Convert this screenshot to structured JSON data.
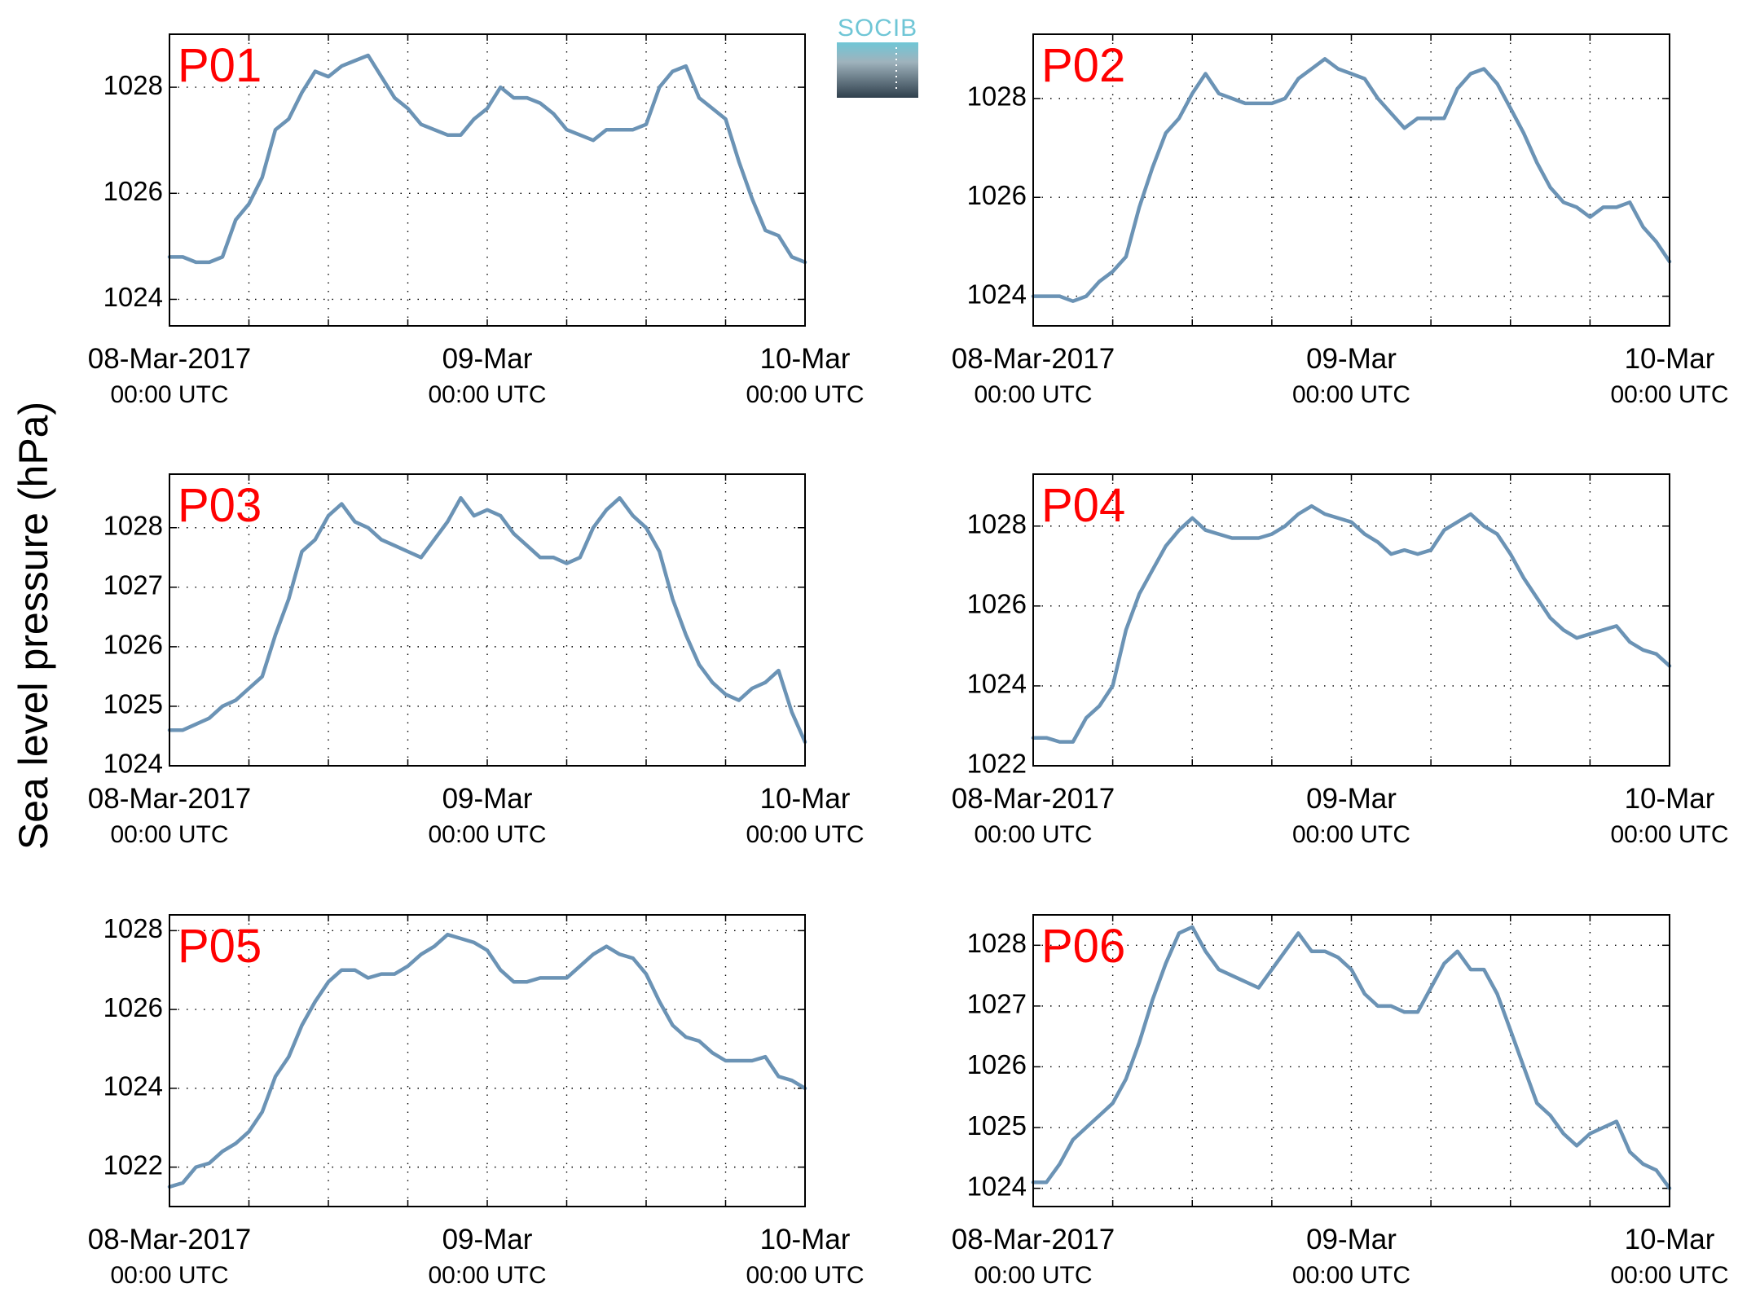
{
  "figure": {
    "ylabel": "Sea level pressure (hPa)",
    "logo_text": "SOCIB",
    "colors": {
      "line": "#6b93b5",
      "title": "#ff0000",
      "logo_top": "#6fc6d6",
      "logo_bottom": "#2f3f4c"
    }
  },
  "chart_data": [
    {
      "type": "line",
      "title": "P01",
      "xlim": [
        0,
        48
      ],
      "ylim": [
        1023.5,
        1029.0
      ],
      "yticks": [
        1024,
        1026,
        1028
      ],
      "xticks": [
        0,
        24,
        48
      ],
      "xticklabels": [
        "08-Mar-2017",
        "09-Mar",
        "10-Mar"
      ],
      "xticksub": [
        "00:00 UTC",
        "00:00 UTC",
        "00:00 UTC"
      ],
      "grid": true,
      "series": [
        {
          "x": [
            0,
            1,
            2,
            3,
            4,
            5,
            6,
            7,
            8,
            9,
            10,
            11,
            12,
            13,
            14,
            15,
            16,
            17,
            18,
            19,
            20,
            21,
            22,
            23,
            24,
            25,
            26,
            27,
            28,
            29,
            30,
            31,
            32,
            33,
            34,
            35,
            36,
            37,
            38,
            39,
            40,
            41,
            42,
            43,
            44,
            45,
            46,
            47,
            48
          ],
          "values": [
            1024.8,
            1024.8,
            1024.7,
            1024.7,
            1024.8,
            1025.5,
            1025.8,
            1026.3,
            1027.2,
            1027.4,
            1027.9,
            1028.3,
            1028.2,
            1028.4,
            1028.5,
            1028.6,
            1028.2,
            1027.8,
            1027.6,
            1027.3,
            1027.2,
            1027.1,
            1027.1,
            1027.4,
            1027.6,
            1028.0,
            1027.8,
            1027.8,
            1027.7,
            1027.5,
            1027.2,
            1027.1,
            1027.0,
            1027.2,
            1027.2,
            1027.2,
            1027.3,
            1028.0,
            1028.3,
            1028.4,
            1027.8,
            1027.6,
            1027.4,
            1026.6,
            1025.9,
            1025.3,
            1025.2,
            1024.8,
            1024.7
          ]
        }
      ]
    },
    {
      "type": "line",
      "title": "P02",
      "xlim": [
        0,
        48
      ],
      "ylim": [
        1023.4,
        1029.3
      ],
      "yticks": [
        1024,
        1026,
        1028
      ],
      "xticks": [
        0,
        24,
        48
      ],
      "xticklabels": [
        "08-Mar-2017",
        "09-Mar",
        "10-Mar"
      ],
      "xticksub": [
        "00:00 UTC",
        "00:00 UTC",
        "00:00 UTC"
      ],
      "grid": true,
      "series": [
        {
          "x": [
            0,
            1,
            2,
            3,
            4,
            5,
            6,
            7,
            8,
            9,
            10,
            11,
            12,
            13,
            14,
            15,
            16,
            17,
            18,
            19,
            20,
            21,
            22,
            23,
            24,
            25,
            26,
            27,
            28,
            29,
            30,
            31,
            32,
            33,
            34,
            35,
            36,
            37,
            38,
            39,
            40,
            41,
            42,
            43,
            44,
            45,
            46,
            47,
            48
          ],
          "values": [
            1024.0,
            1024.0,
            1024.0,
            1023.9,
            1024.0,
            1024.3,
            1024.5,
            1024.8,
            1025.8,
            1026.6,
            1027.3,
            1027.6,
            1028.1,
            1028.5,
            1028.1,
            1028.0,
            1027.9,
            1027.9,
            1027.9,
            1028.0,
            1028.4,
            1028.6,
            1028.8,
            1028.6,
            1028.5,
            1028.4,
            1028.0,
            1027.7,
            1027.4,
            1027.6,
            1027.6,
            1027.6,
            1028.2,
            1028.5,
            1028.6,
            1028.3,
            1027.8,
            1027.3,
            1026.7,
            1026.2,
            1025.9,
            1025.8,
            1025.6,
            1025.8,
            1025.8,
            1025.9,
            1025.4,
            1025.1,
            1024.7
          ]
        }
      ]
    },
    {
      "type": "line",
      "title": "P03",
      "xlim": [
        0,
        48
      ],
      "ylim": [
        1024.0,
        1028.9
      ],
      "yticks": [
        1024,
        1025,
        1026,
        1027,
        1028
      ],
      "xticks": [
        0,
        24,
        48
      ],
      "xticklabels": [
        "08-Mar-2017",
        "09-Mar",
        "10-Mar"
      ],
      "xticksub": [
        "00:00 UTC",
        "00:00 UTC",
        "00:00 UTC"
      ],
      "grid": true,
      "series": [
        {
          "x": [
            0,
            1,
            2,
            3,
            4,
            5,
            6,
            7,
            8,
            9,
            10,
            11,
            12,
            13,
            14,
            15,
            16,
            17,
            18,
            19,
            20,
            21,
            22,
            23,
            24,
            25,
            26,
            27,
            28,
            29,
            30,
            31,
            32,
            33,
            34,
            35,
            36,
            37,
            38,
            39,
            40,
            41,
            42,
            43,
            44,
            45,
            46,
            47,
            48
          ],
          "values": [
            1024.6,
            1024.6,
            1024.7,
            1024.8,
            1025.0,
            1025.1,
            1025.3,
            1025.5,
            1026.2,
            1026.8,
            1027.6,
            1027.8,
            1028.2,
            1028.4,
            1028.1,
            1028.0,
            1027.8,
            1027.7,
            1027.6,
            1027.5,
            1027.8,
            1028.1,
            1028.5,
            1028.2,
            1028.3,
            1028.2,
            1027.9,
            1027.7,
            1027.5,
            1027.5,
            1027.4,
            1027.5,
            1028.0,
            1028.3,
            1028.5,
            1028.2,
            1028.0,
            1027.6,
            1026.8,
            1026.2,
            1025.7,
            1025.4,
            1025.2,
            1025.1,
            1025.3,
            1025.4,
            1025.6,
            1024.9,
            1024.4
          ]
        }
      ]
    },
    {
      "type": "line",
      "title": "P04",
      "xlim": [
        0,
        48
      ],
      "ylim": [
        1022.0,
        1029.3
      ],
      "yticks": [
        1022,
        1024,
        1026,
        1028
      ],
      "xticks": [
        0,
        24,
        48
      ],
      "xticklabels": [
        "08-Mar-2017",
        "09-Mar",
        "10-Mar"
      ],
      "xticksub": [
        "00:00 UTC",
        "00:00 UTC",
        "00:00 UTC"
      ],
      "grid": true,
      "series": [
        {
          "x": [
            0,
            1,
            2,
            3,
            4,
            5,
            6,
            7,
            8,
            9,
            10,
            11,
            12,
            13,
            14,
            15,
            16,
            17,
            18,
            19,
            20,
            21,
            22,
            23,
            24,
            25,
            26,
            27,
            28,
            29,
            30,
            31,
            32,
            33,
            34,
            35,
            36,
            37,
            38,
            39,
            40,
            41,
            42,
            43,
            44,
            45,
            46,
            47,
            48
          ],
          "values": [
            1022.7,
            1022.7,
            1022.6,
            1022.6,
            1023.2,
            1023.5,
            1024.0,
            1025.4,
            1026.3,
            1026.9,
            1027.5,
            1027.9,
            1028.2,
            1027.9,
            1027.8,
            1027.7,
            1027.7,
            1027.7,
            1027.8,
            1028.0,
            1028.3,
            1028.5,
            1028.3,
            1028.2,
            1028.1,
            1027.8,
            1027.6,
            1027.3,
            1027.4,
            1027.3,
            1027.4,
            1027.9,
            1028.1,
            1028.3,
            1028.0,
            1027.8,
            1027.3,
            1026.7,
            1026.2,
            1025.7,
            1025.4,
            1025.2,
            1025.3,
            1025.4,
            1025.5,
            1025.1,
            1024.9,
            1024.8,
            1024.5
          ]
        }
      ]
    },
    {
      "type": "line",
      "title": "P05",
      "xlim": [
        0,
        48
      ],
      "ylim": [
        1021.0,
        1028.4
      ],
      "yticks": [
        1022,
        1024,
        1026,
        1028
      ],
      "xticks": [
        0,
        24,
        48
      ],
      "xticklabels": [
        "08-Mar-2017",
        "09-Mar",
        "10-Mar"
      ],
      "xticksub": [
        "00:00 UTC",
        "00:00 UTC",
        "00:00 UTC"
      ],
      "grid": true,
      "series": [
        {
          "x": [
            0,
            1,
            2,
            3,
            4,
            5,
            6,
            7,
            8,
            9,
            10,
            11,
            12,
            13,
            14,
            15,
            16,
            17,
            18,
            19,
            20,
            21,
            22,
            23,
            24,
            25,
            26,
            27,
            28,
            29,
            30,
            31,
            32,
            33,
            34,
            35,
            36,
            37,
            38,
            39,
            40,
            41,
            42,
            43,
            44,
            45,
            46,
            47,
            48
          ],
          "values": [
            1021.5,
            1021.6,
            1022.0,
            1022.1,
            1022.4,
            1022.6,
            1022.9,
            1023.4,
            1024.3,
            1024.8,
            1025.6,
            1026.2,
            1026.7,
            1027.0,
            1027.0,
            1026.8,
            1026.9,
            1026.9,
            1027.1,
            1027.4,
            1027.6,
            1027.9,
            1027.8,
            1027.7,
            1027.5,
            1027.0,
            1026.7,
            1026.7,
            1026.8,
            1026.8,
            1026.8,
            1027.1,
            1027.4,
            1027.6,
            1027.4,
            1027.3,
            1026.9,
            1026.2,
            1025.6,
            1025.3,
            1025.2,
            1024.9,
            1024.7,
            1024.7,
            1024.7,
            1024.8,
            1024.3,
            1024.2,
            1024.0
          ]
        }
      ]
    },
    {
      "type": "line",
      "title": "P06",
      "xlim": [
        0,
        48
      ],
      "ylim": [
        1023.7,
        1028.5
      ],
      "yticks": [
        1024,
        1025,
        1026,
        1027,
        1028
      ],
      "xticks": [
        0,
        24,
        48
      ],
      "xticklabels": [
        "08-Mar-2017",
        "09-Mar",
        "10-Mar"
      ],
      "xticksub": [
        "00:00 UTC",
        "00:00 UTC",
        "00:00 UTC"
      ],
      "grid": true,
      "series": [
        {
          "x": [
            0,
            1,
            2,
            3,
            4,
            5,
            6,
            7,
            8,
            9,
            10,
            11,
            12,
            13,
            14,
            15,
            16,
            17,
            18,
            19,
            20,
            21,
            22,
            23,
            24,
            25,
            26,
            27,
            28,
            29,
            30,
            31,
            32,
            33,
            34,
            35,
            36,
            37,
            38,
            39,
            40,
            41,
            42,
            43,
            44,
            45,
            46,
            47,
            48
          ],
          "values": [
            1024.1,
            1024.1,
            1024.4,
            1024.8,
            1025.0,
            1025.2,
            1025.4,
            1025.8,
            1026.4,
            1027.1,
            1027.7,
            1028.2,
            1028.3,
            1027.9,
            1027.6,
            1027.5,
            1027.4,
            1027.3,
            1027.6,
            1027.9,
            1028.2,
            1027.9,
            1027.9,
            1027.8,
            1027.6,
            1027.2,
            1027.0,
            1027.0,
            1026.9,
            1026.9,
            1027.3,
            1027.7,
            1027.9,
            1027.6,
            1027.6,
            1027.2,
            1026.6,
            1026.0,
            1025.4,
            1025.2,
            1024.9,
            1024.7,
            1024.9,
            1025.0,
            1025.1,
            1024.6,
            1024.4,
            1024.3,
            1024.0
          ]
        }
      ]
    }
  ]
}
